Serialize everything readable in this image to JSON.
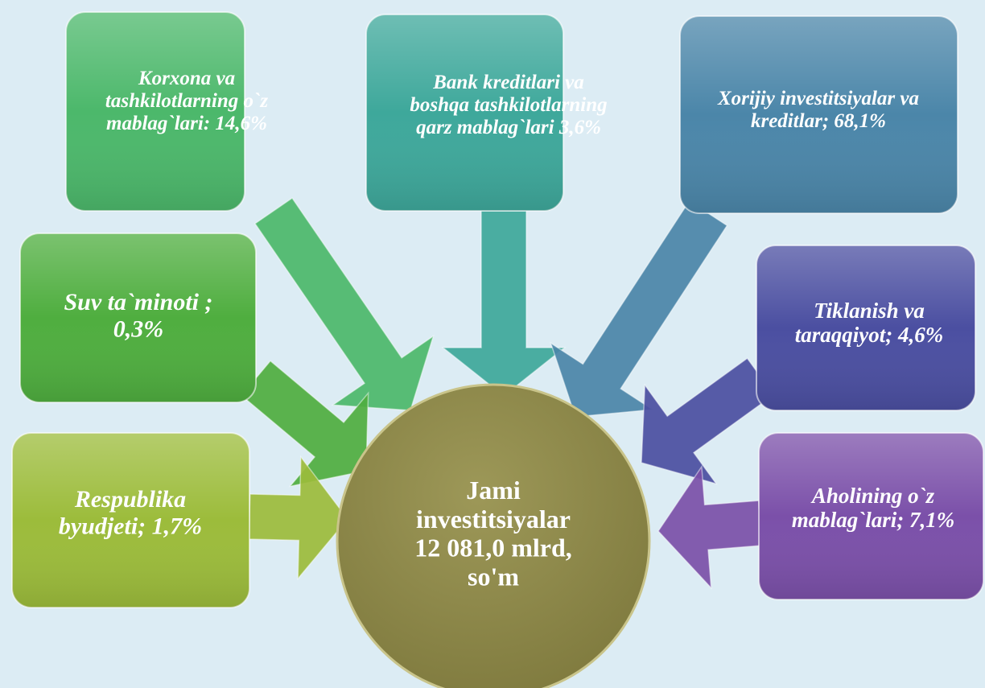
{
  "center": {
    "lines": [
      "Jami",
      "investitsiyalar",
      "12 081,0 mlrd,",
      "so'm"
    ]
  },
  "nodes": [
    {
      "lines": [
        "Korxona va",
        "tashkilotlarning o`z",
        "mablag`lari: 14,6%"
      ]
    },
    {
      "lines": [
        "Bank kreditlari va",
        "boshqa tashkilotlarning",
        "qarz mablag`lari 3,6%"
      ]
    },
    {
      "lines": [
        "Xorijiy investitsiyalar va",
        "kreditlar; 68,1%"
      ]
    },
    {
      "lines": [
        "Suv  ta`minoti ;",
        "0,3%"
      ]
    },
    {
      "lines": [
        "Tiklanish va",
        "taraqqiyot; 4,6%"
      ]
    },
    {
      "lines": [
        "Respublika",
        "byudjeti; 1,7%"
      ]
    },
    {
      "lines": [
        "Aholining o`z",
        "mablag`lari; 7,1%"
      ]
    }
  ]
}
